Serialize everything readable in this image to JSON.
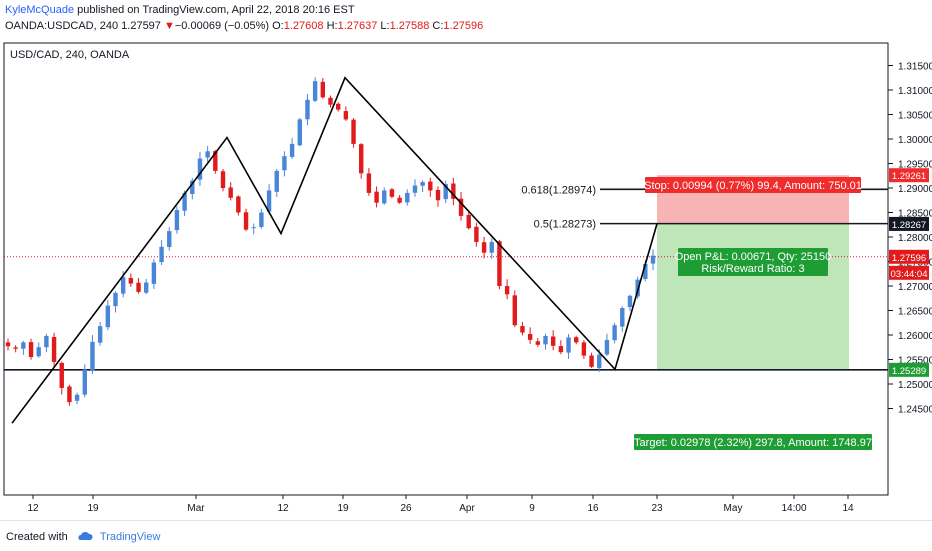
{
  "header": {
    "author": "KyleMcQuade",
    "published": "published on TradingView.com, April 22, 2018 20:16 EST",
    "symbol": "OANDA:USDCAD, 240",
    "last": "1.27597",
    "change_arrow": "▼",
    "change": "−0.00069 (−0.05%)",
    "o_label": "O:",
    "o": "1.27608",
    "h_label": "H:",
    "h": "1.27637",
    "l_label": "L:",
    "l": "1.27588",
    "c_label": "C:",
    "c": "1.27596"
  },
  "footer": {
    "created_with": "Created with",
    "brand": "TradingView"
  },
  "colors": {
    "up": "#4a86d8",
    "down": "#e11b1b",
    "stop_zone": "#f8b4b4",
    "target_zone": "#bfe6b8",
    "stop_label": "#ef2b2b",
    "target_label": "#1f9d35",
    "axis_text": "#131722"
  },
  "chart_data": {
    "type": "candlestick",
    "title": "USD/CAD, 240, OANDA",
    "ylim": [
      1.2415,
      1.3185
    ],
    "y_ticks": [
      "1.31500",
      "1.31000",
      "1.30500",
      "1.30000",
      "1.29500",
      "1.29000",
      "1.28500",
      "1.28000",
      "1.27500",
      "1.27000",
      "1.26500",
      "1.26000",
      "1.25500",
      "1.25000",
      "1.24500"
    ],
    "x_ticks": [
      "12",
      "19",
      "Mar",
      "12",
      "19",
      "26",
      "Apr",
      "9",
      "16",
      "23",
      "May",
      "14:00",
      "14"
    ],
    "price_labels": [
      {
        "value": "1.29261",
        "kind": "stop"
      },
      {
        "value": "1.28267",
        "kind": "dark"
      },
      {
        "value": "1.27596",
        "kind": "current"
      },
      {
        "value": "03:44:04",
        "kind": "timer"
      },
      {
        "value": "1.25289",
        "kind": "target"
      }
    ],
    "fib_levels": [
      {
        "label": "0.618(1.28974)",
        "price": 1.28974
      },
      {
        "label": "0.5(1.28273)",
        "price": 1.28273
      }
    ],
    "support_level": 1.25289,
    "current_price": 1.27596,
    "position": {
      "entry": 1.28267,
      "stop": 1.29261,
      "target": 1.25289,
      "stop_label": "Stop: 0.00994 (0.77%) 99.4, Amount: 750.01",
      "pnl_label": "Open P&L: 0.00671, Qty: 25150",
      "rr_label": "Risk/Reward Ratio: 3",
      "target_label": "Target: 0.02978 (2.32%) 297.8, Amount: 1748.97"
    },
    "swing_points": [
      1.242,
      1.3003,
      1.2807,
      1.3125,
      1.253,
      1.2827
    ],
    "candle_path": [
      1.2577,
      1.2572,
      1.2585,
      1.2555,
      1.2575,
      1.2598,
      1.2545,
      1.2492,
      1.2463,
      1.2478,
      1.253,
      1.2586,
      1.2618,
      1.266,
      1.2686,
      1.2718,
      1.2705,
      1.2688,
      1.2707,
      1.2748,
      1.278,
      1.2812,
      1.2855,
      1.289,
      1.2915,
      1.296,
      1.2975,
      1.2935,
      1.29,
      1.288,
      1.285,
      1.2815,
      1.282,
      1.285,
      1.2895,
      1.2935,
      1.2965,
      1.299,
      1.304,
      1.308,
      1.3118,
      1.3085,
      1.307,
      1.306,
      1.304,
      1.299,
      1.293,
      1.289,
      1.287,
      1.2895,
      1.2882,
      1.287,
      1.289,
      1.2905,
      1.2912,
      1.2895,
      1.2875,
      1.2908,
      1.2878,
      1.2843,
      1.2818,
      1.279,
      1.2768,
      1.279,
      1.27,
      1.2683,
      1.262,
      1.2605,
      1.259,
      1.258,
      1.2598,
      1.2578,
      1.2565,
      1.2595,
      1.2585,
      1.2558,
      1.2535,
      1.256,
      1.259,
      1.262,
      1.2655,
      1.268,
      1.2713,
      1.2745,
      1.2762
    ]
  }
}
